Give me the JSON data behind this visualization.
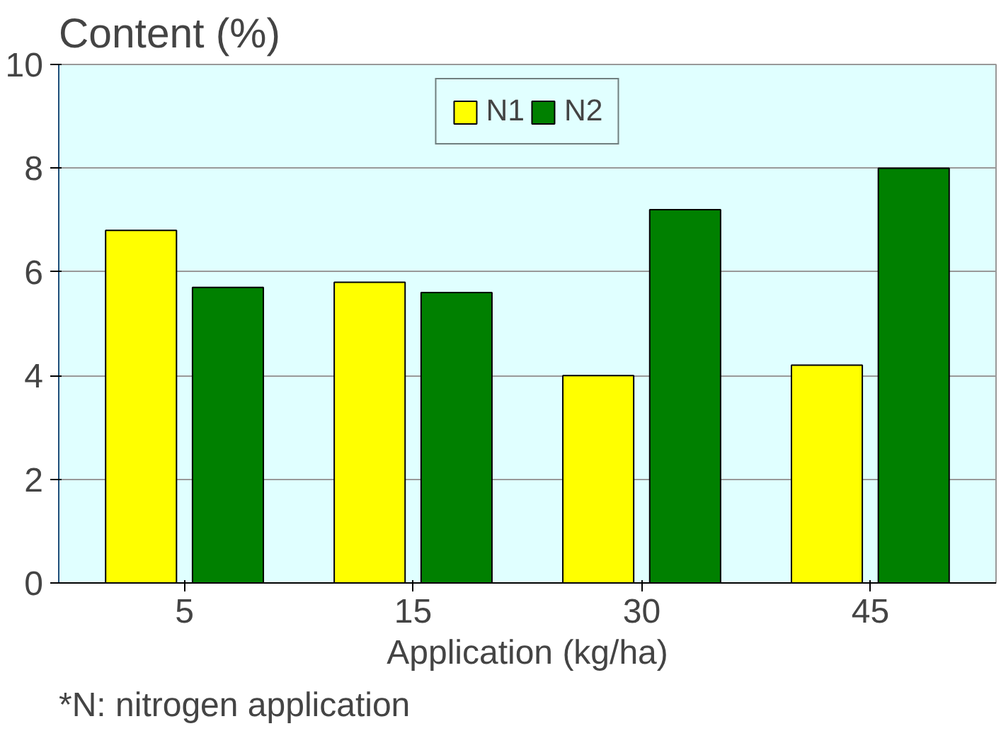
{
  "chart_data": {
    "type": "bar",
    "title": "Content (%)",
    "xlabel": "Application (kg/ha)",
    "categories": [
      "5",
      "15",
      "30",
      "45"
    ],
    "series": [
      {
        "name": "N1",
        "color": "#ffff00",
        "values": [
          6.8,
          5.8,
          4.0,
          4.2
        ]
      },
      {
        "name": "N2",
        "color": "#008000",
        "values": [
          5.7,
          5.6,
          7.2,
          8.0
        ]
      }
    ],
    "ylim": [
      0,
      10
    ],
    "yticks": [
      0,
      2,
      4,
      6,
      8,
      10
    ],
    "grid": "y",
    "legend": "top",
    "annotations": [
      "*N: nitrogen application"
    ]
  }
}
